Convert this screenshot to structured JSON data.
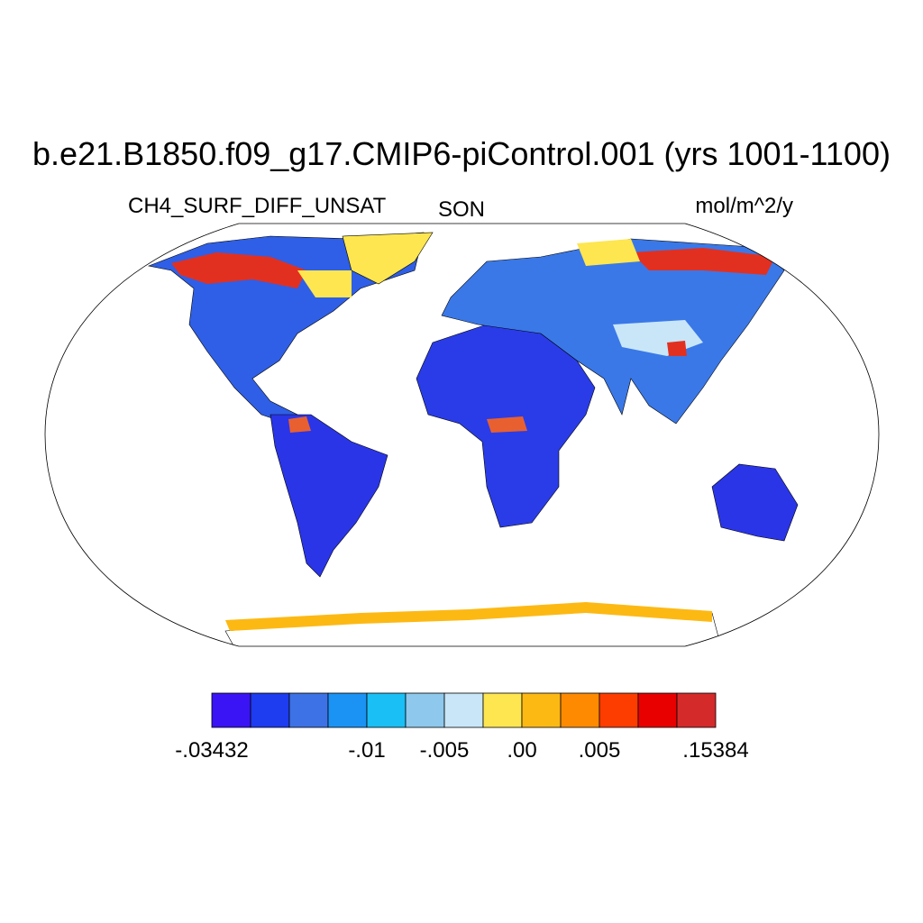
{
  "title": "b.e21.B1850.f09_g17.CMIP6-piControl.001 (yrs 1001-1100)",
  "left_string": "CH4_SURF_DIFF_UNSAT",
  "center_string": "SON",
  "right_string": "mol/m^2/y",
  "colorbar": {
    "colors": [
      "#3b14f5",
      "#1e3cf0",
      "#3c72e6",
      "#1b93f5",
      "#19bff5",
      "#8ec8ec",
      "#c8e6f8",
      "#fde650",
      "#fdb913",
      "#fd8a00",
      "#fd3c00",
      "#e80000",
      "#d42a2a"
    ],
    "labels": [
      "-.03432",
      "-.01",
      "-.005",
      ".00",
      ".005",
      ".15384"
    ]
  }
}
